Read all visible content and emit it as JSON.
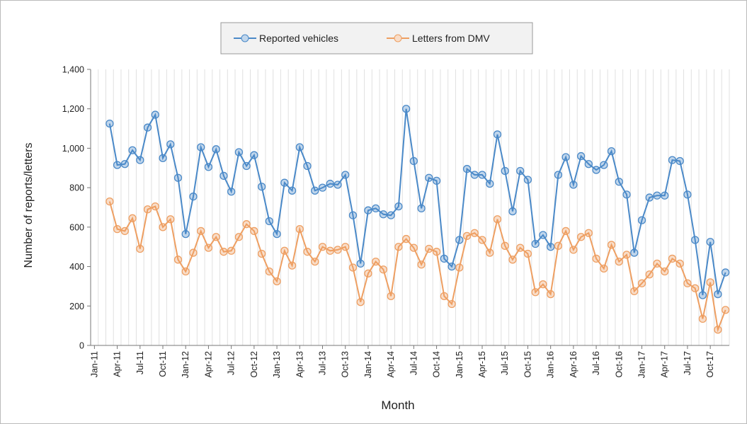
{
  "chart_data": {
    "type": "line",
    "x_label": "Month",
    "y_label": "Number of reports/letters",
    "categories": [
      "Jan-11",
      null,
      null,
      "Apr-11",
      null,
      null,
      "Jul-11",
      null,
      null,
      "Oct-11",
      null,
      null,
      "Jan-12",
      null,
      null,
      "Apr-12",
      null,
      null,
      "Jul-12",
      null,
      null,
      "Oct-12",
      null,
      null,
      "Jan-13",
      null,
      null,
      "Apr-13",
      null,
      null,
      "Jul-13",
      null,
      null,
      "Oct-13",
      null,
      null,
      "Jan-14",
      null,
      null,
      "Apr-14",
      null,
      null,
      "Jul-14",
      null,
      null,
      "Oct-14",
      null,
      null,
      "Jan-15",
      null,
      null,
      "Apr-15",
      null,
      null,
      "Jul-15",
      null,
      null,
      "Oct-15",
      null,
      null,
      "Jan-16",
      null,
      null,
      "Apr-16",
      null,
      null,
      "Jul-16",
      null,
      null,
      "Oct-16",
      null,
      null,
      "Jan-17",
      null,
      null,
      "Apr-17",
      null,
      null,
      "Jul-17",
      null,
      null,
      "Oct-17",
      null,
      null
    ],
    "series": [
      {
        "name": "Reported vehicles",
        "color": "#4a89c8",
        "values": [
          null,
          null,
          1125,
          915,
          920,
          990,
          940,
          1105,
          1170,
          950,
          1020,
          850,
          565,
          755,
          1005,
          905,
          995,
          860,
          780,
          980,
          910,
          965,
          805,
          630,
          565,
          825,
          785,
          1005,
          910,
          785,
          800,
          820,
          815,
          865,
          660,
          415,
          685,
          695,
          665,
          660,
          705,
          1200,
          935,
          695,
          850,
          835,
          440,
          400,
          535,
          895,
          865,
          865,
          820,
          1070,
          885,
          680,
          885,
          840,
          515,
          560,
          500,
          865,
          955,
          815,
          960,
          920,
          890,
          915,
          985,
          830,
          765,
          470,
          635,
          750,
          760,
          760,
          940,
          935,
          765,
          535,
          255,
          525,
          260,
          370
        ]
      },
      {
        "name": "Letters from DMV",
        "color": "#ee9f62",
        "values": [
          null,
          null,
          730,
          590,
          580,
          645,
          490,
          690,
          705,
          600,
          640,
          435,
          375,
          470,
          580,
          495,
          550,
          475,
          480,
          550,
          615,
          580,
          465,
          375,
          325,
          480,
          405,
          590,
          475,
          425,
          500,
          480,
          485,
          500,
          395,
          220,
          365,
          425,
          385,
          250,
          500,
          540,
          495,
          410,
          490,
          475,
          250,
          210,
          395,
          555,
          570,
          535,
          470,
          640,
          505,
          435,
          495,
          465,
          270,
          310,
          260,
          505,
          580,
          485,
          550,
          570,
          440,
          390,
          510,
          425,
          460,
          275,
          315,
          360,
          415,
          375,
          440,
          415,
          315,
          290,
          135,
          320,
          80,
          180
        ]
      }
    ],
    "ylim": [
      0,
      1400
    ],
    "yticks": [
      0,
      200,
      400,
      600,
      800,
      {
        "value": 1000,
        "label": "1,000"
      },
      {
        "value": 1200,
        "label": "1,200"
      },
      {
        "value": 1400,
        "label": "1,400"
      }
    ],
    "grid": true,
    "legend": "top"
  }
}
